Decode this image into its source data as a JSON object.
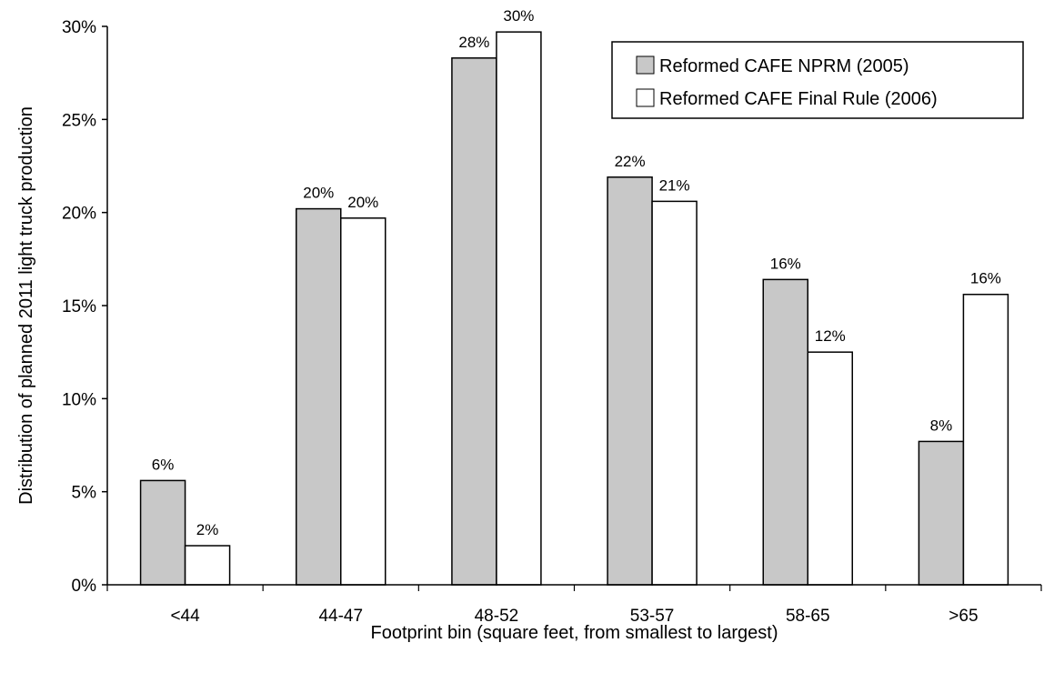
{
  "chart_data": {
    "type": "bar",
    "title": "",
    "xlabel": "Footprint bin (square feet, from smallest to largest)",
    "ylabel": "Distribution of planned 2011 light truck production",
    "categories": [
      "<44",
      "44-47",
      "48-52",
      "53-57",
      "58-65",
      ">65"
    ],
    "series": [
      {
        "name": "Reformed CAFE NPRM (2005)",
        "color": "#c8c8c8",
        "values": [
          0.056,
          0.202,
          0.283,
          0.219,
          0.164,
          0.077
        ],
        "labels": [
          "6%",
          "20%",
          "28%",
          "22%",
          "16%",
          "8%"
        ]
      },
      {
        "name": "Reformed CAFE Final Rule (2006)",
        "color": "#ffffff",
        "values": [
          0.021,
          0.197,
          0.297,
          0.206,
          0.125,
          0.156
        ],
        "labels": [
          "2%",
          "20%",
          "30%",
          "21%",
          "12%",
          "16%"
        ]
      }
    ],
    "yticks": [
      0,
      0.05,
      0.1,
      0.15,
      0.2,
      0.25,
      0.3
    ],
    "ytick_labels": [
      "0%",
      "5%",
      "10%",
      "15%",
      "20%",
      "25%",
      "30%"
    ],
    "ylim": [
      0,
      0.3
    ],
    "grid": false,
    "legend_position": "top-right"
  }
}
